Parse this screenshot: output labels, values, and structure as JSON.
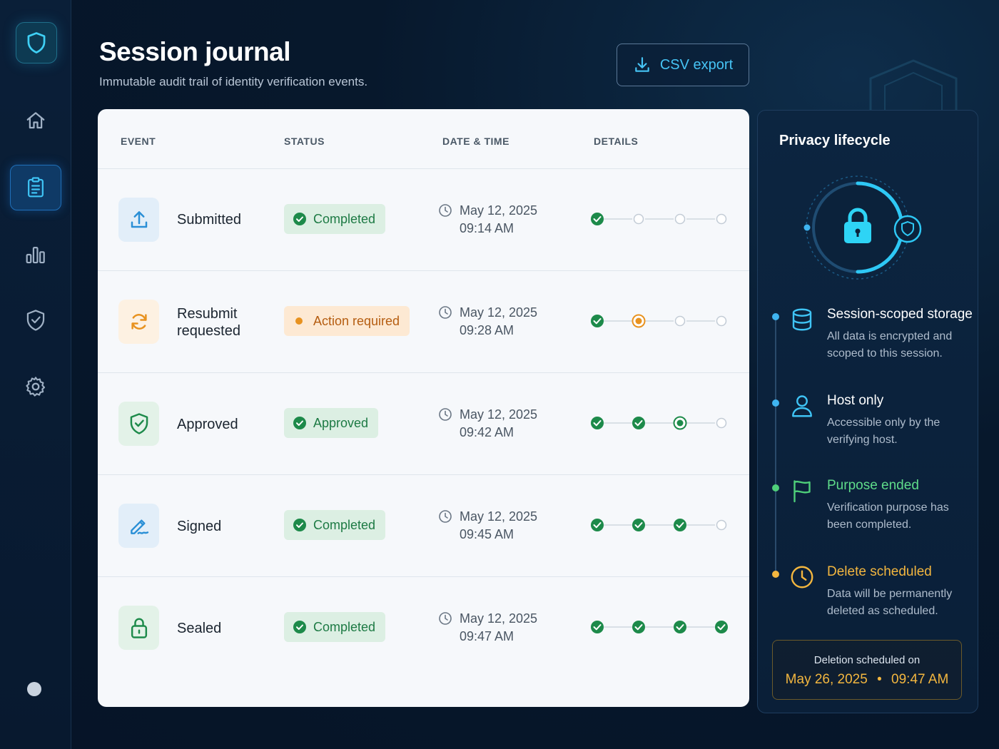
{
  "header": {
    "title": "Session journal",
    "subtitle": "Immutable audit trail of identity verification events.",
    "export_label": "CSV export"
  },
  "sidebar": {
    "items": [
      {
        "icon": "home-icon"
      },
      {
        "icon": "clipboard-icon",
        "active": true
      },
      {
        "icon": "bar-chart-icon"
      },
      {
        "icon": "shield-check-icon"
      },
      {
        "icon": "gear-icon"
      }
    ]
  },
  "table": {
    "columns": [
      "EVENT",
      "STATUS",
      "DATE & TIME",
      "DETAILS"
    ],
    "rows": [
      {
        "event": "Submitted",
        "icon": "upload-icon",
        "status": "Completed",
        "tone": "green",
        "date": "May 12, 2025",
        "time": "09:14 AM",
        "steps": [
          "done",
          "todo",
          "todo",
          "todo"
        ]
      },
      {
        "event": "Resubmit requested",
        "icon": "refresh-icon",
        "status": "Action required",
        "tone": "orange",
        "date": "May 12, 2025",
        "time": "09:28 AM",
        "steps": [
          "done",
          "current-orange",
          "todo",
          "todo"
        ]
      },
      {
        "event": "Approved",
        "icon": "shield-check-icon",
        "status": "Approved",
        "tone": "green",
        "date": "May 12, 2025",
        "time": "09:42 AM",
        "steps": [
          "done",
          "done",
          "current-green",
          "todo"
        ]
      },
      {
        "event": "Signed",
        "icon": "pen-signature-icon",
        "status": "Completed",
        "tone": "green",
        "date": "May 12, 2025",
        "time": "09:45 AM",
        "steps": [
          "done",
          "done",
          "done",
          "todo"
        ]
      },
      {
        "event": "Sealed",
        "icon": "lock-icon",
        "status": "Completed",
        "tone": "green",
        "date": "May 12, 2025",
        "time": "09:47 AM",
        "steps": [
          "done",
          "done",
          "done",
          "done"
        ]
      }
    ]
  },
  "panel": {
    "title": "Privacy lifecycle",
    "timeline": [
      {
        "title": "Session-scoped storage",
        "desc": "All data is encrypted and scoped to this session.",
        "icon": "database-icon",
        "color": "#ffffff",
        "dot": "#3fb4f0"
      },
      {
        "title": "Host only",
        "desc": "Accessible only by the verifying host.",
        "icon": "user-icon",
        "color": "#ffffff",
        "dot": "#3fb4f0"
      },
      {
        "title": "Purpose ended",
        "desc": "Verification purpose has been completed.",
        "icon": "flag-icon",
        "color": "#5fdc8a",
        "dot": "#4fcf7a"
      },
      {
        "title": "Delete scheduled",
        "desc": "Data will be permanently deleted as scheduled.",
        "icon": "clock-icon",
        "color": "#f3b63f",
        "dot": "#f3b63f"
      }
    ],
    "deletion": {
      "label": "Deletion scheduled on",
      "date": "May 26, 2025",
      "separator": "•",
      "time": "09:47 AM"
    }
  },
  "colors": {
    "accent": "#46c4f5",
    "green": "#1d7a44",
    "orange": "#e8921f",
    "amber": "#f3b63f"
  }
}
